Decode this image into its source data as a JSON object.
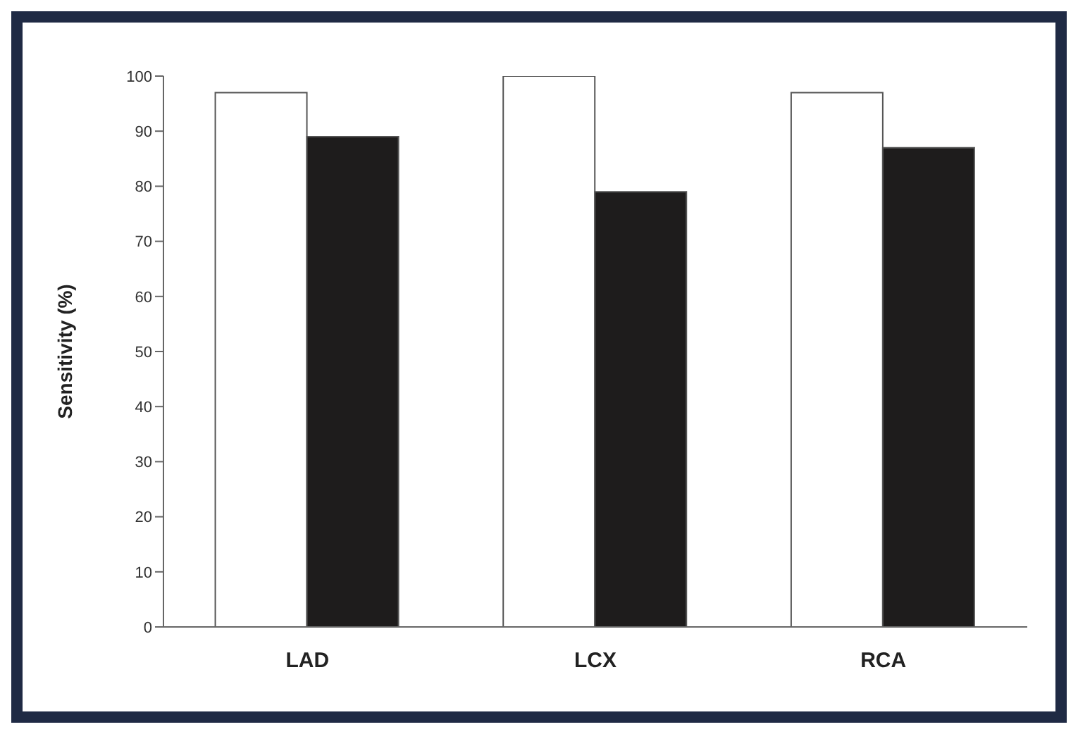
{
  "chart_data": {
    "type": "bar",
    "ylabel": "Sensitivity (%)",
    "categories": [
      "LAD",
      "LCX",
      "RCA"
    ],
    "series": [
      {
        "color": "#ffffff",
        "values": [
          97,
          100,
          97
        ]
      },
      {
        "color": "#1e1c1c",
        "values": [
          89,
          79,
          87
        ]
      }
    ],
    "ylim": [
      0,
      100
    ],
    "yticks": [
      0,
      10,
      20,
      30,
      40,
      50,
      60,
      70,
      80,
      90,
      100
    ],
    "grid": false,
    "legend": false
  }
}
